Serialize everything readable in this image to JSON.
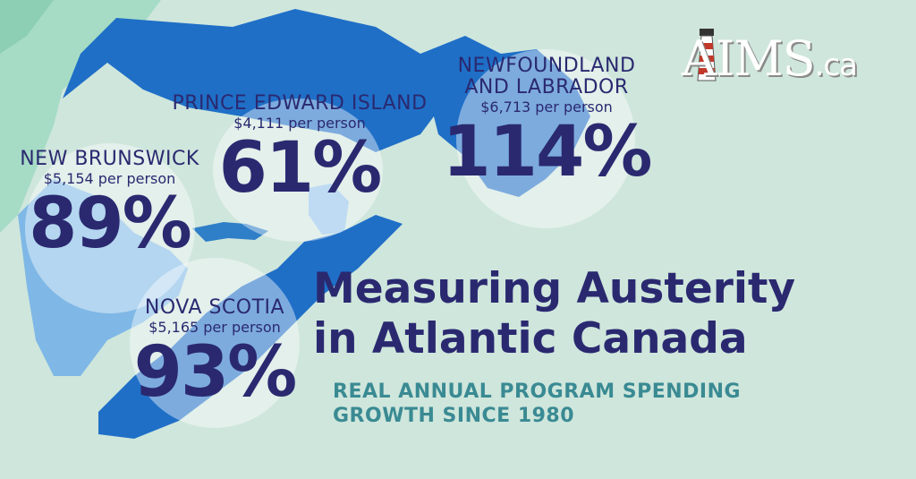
{
  "title_line1": "Measuring Austerity",
  "title_line2": "in Atlantic Canada",
  "subtitle_line1": "REAL ANNUAL PROGRAM SPENDING",
  "subtitle_line2": "GROWTH SINCE 1980",
  "logo": {
    "text": "AIMS",
    "suffix": ".ca",
    "icon": "lighthouse-icon"
  },
  "provinces": {
    "new_brunswick": {
      "name": "NEW BRUNSWICK",
      "per_person": "$5,154 per person",
      "growth": "89%"
    },
    "pei": {
      "name": "PRINCE EDWARD ISLAND",
      "per_person": "$4,111 per person",
      "growth": "61%"
    },
    "newfoundland": {
      "name_line1": "NEWFOUNDLAND",
      "name_line2": "AND LABRADOR",
      "per_person": "$6,713 per person",
      "growth": "114%"
    },
    "nova_scotia": {
      "name": "NOVA SCOTIA",
      "per_person": "$5,165 per person",
      "growth": "93%"
    }
  },
  "colors": {
    "background": "#cfe6dc",
    "land": "#a5dcc8",
    "water_dark": "#1f6fc7",
    "water_light": "#7fb8e6",
    "text_primary": "#2a2970",
    "text_secondary": "#3a8a93"
  }
}
